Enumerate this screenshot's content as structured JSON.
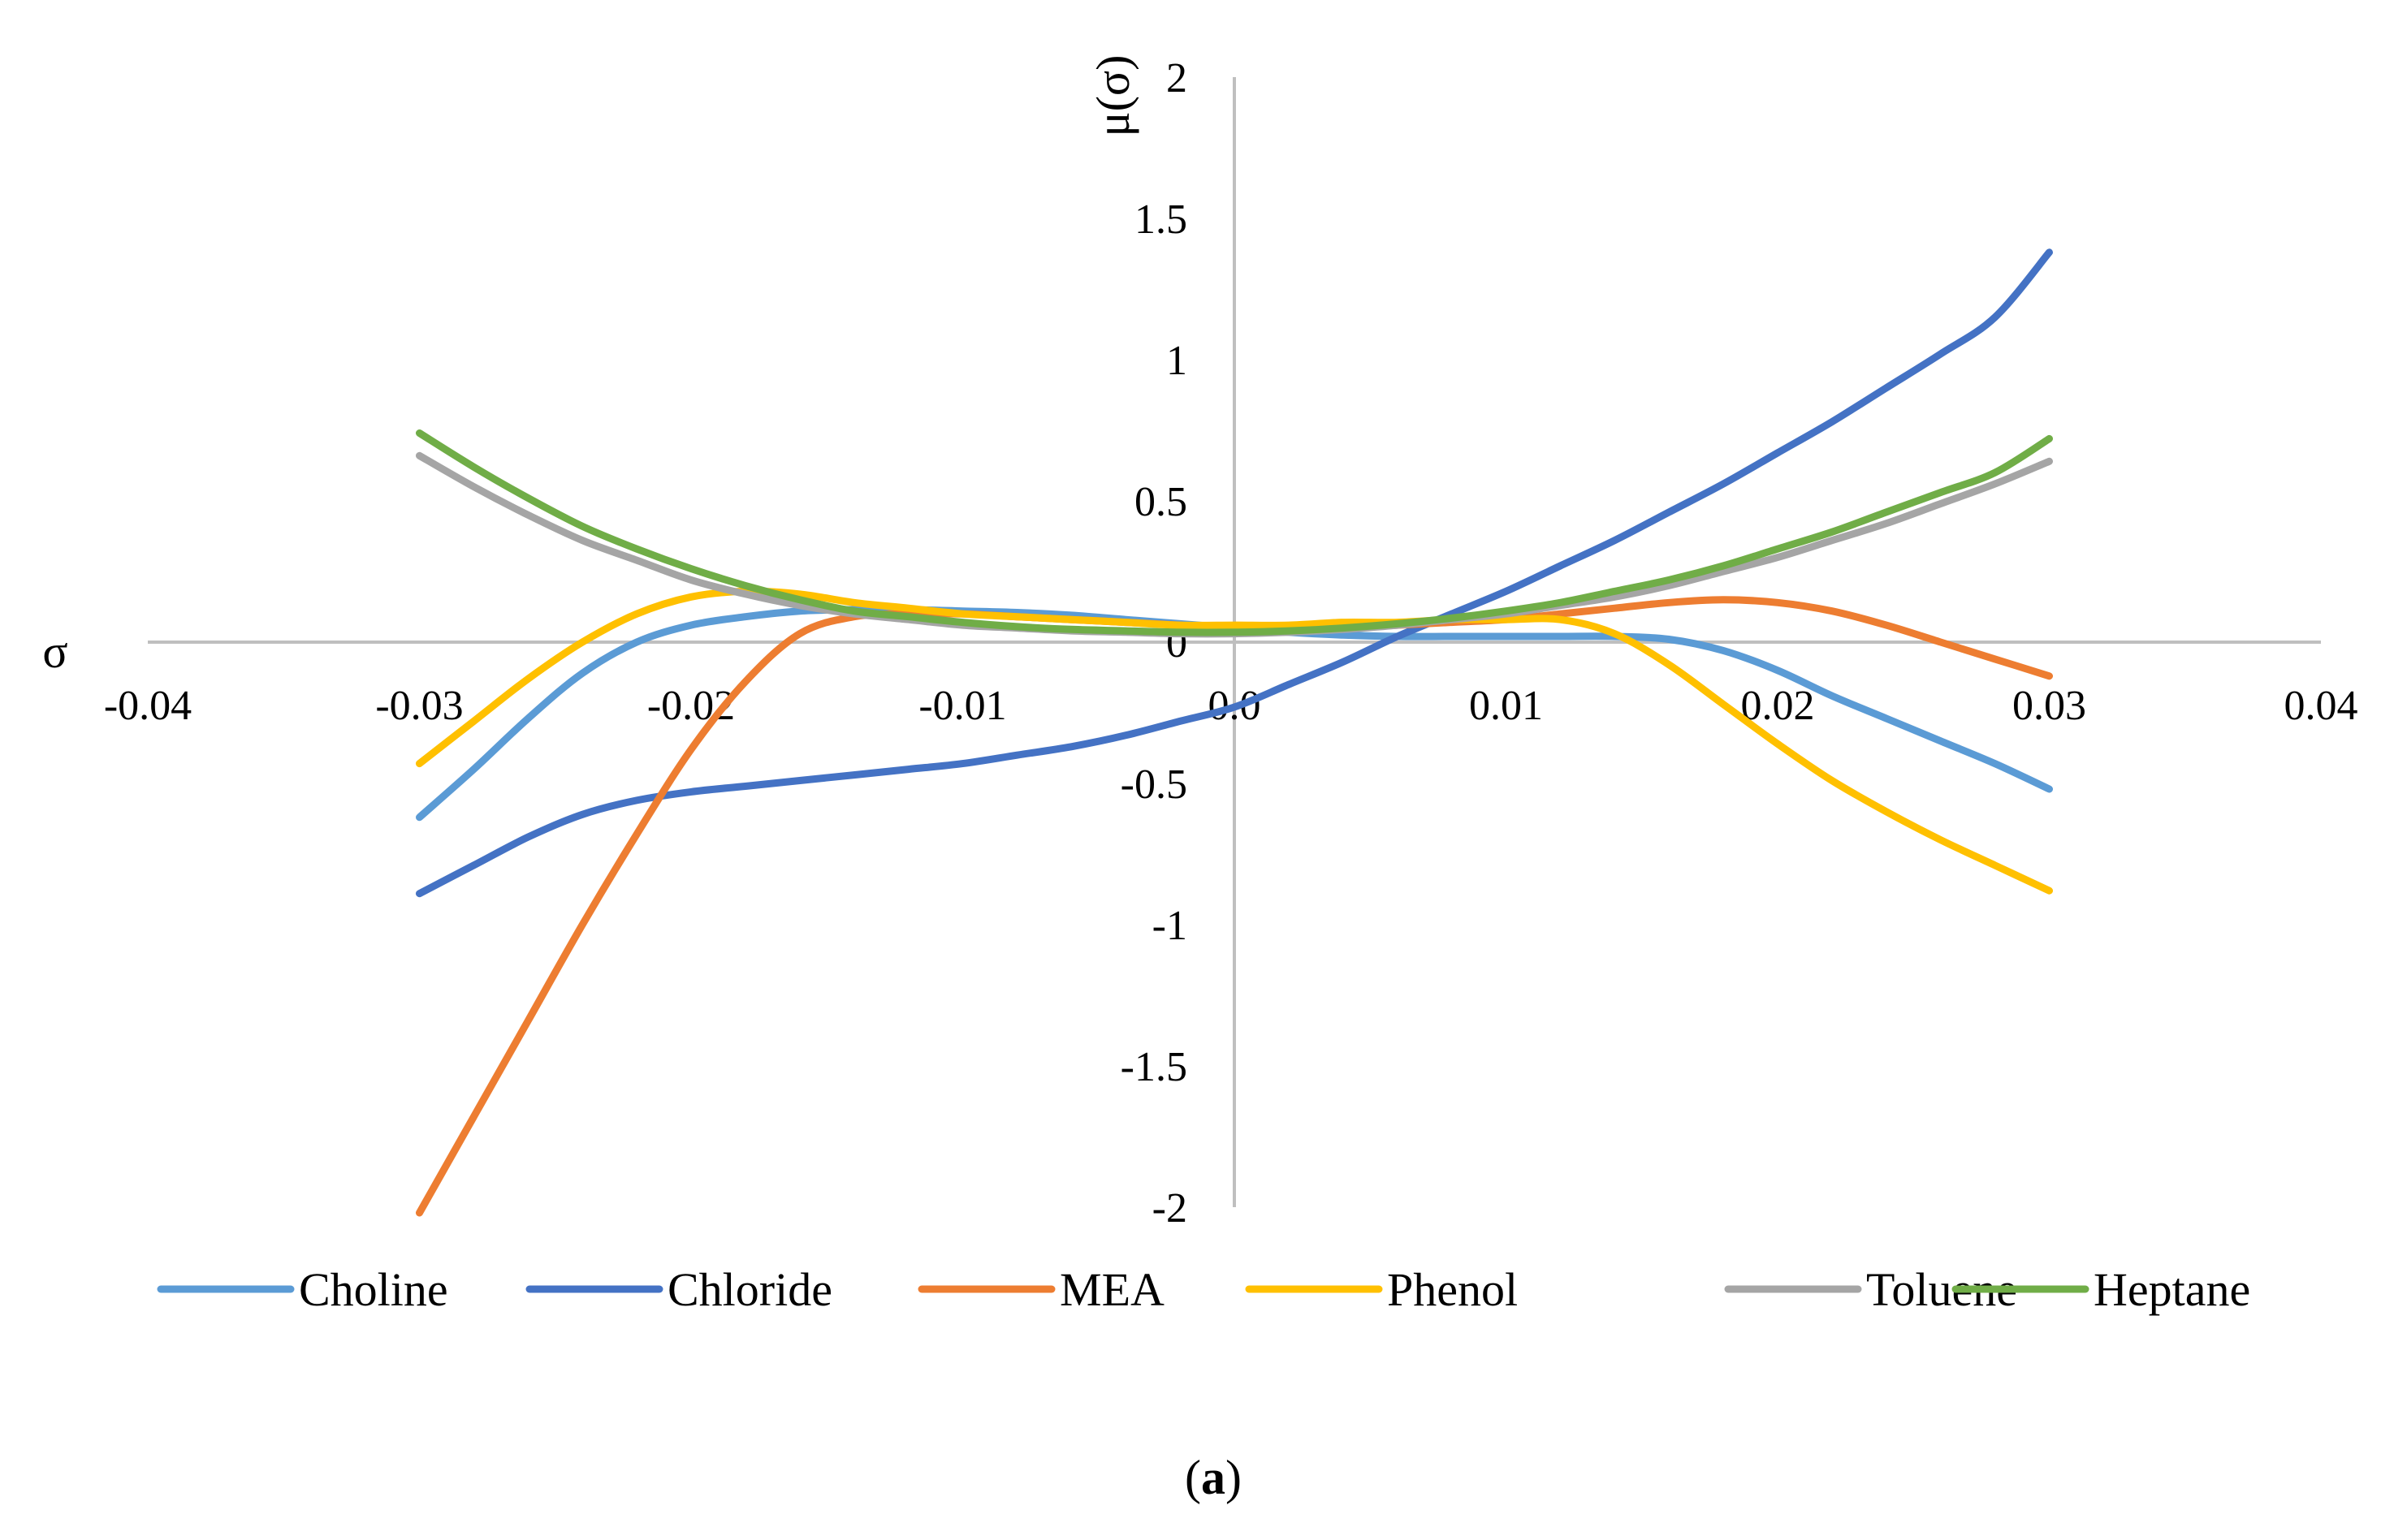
{
  "chart_data": {
    "type": "line",
    "title": "",
    "xlabel": "σ",
    "ylabel": "μ(σ)",
    "caption": {
      "open": "(",
      "bold": "a",
      "close": ")"
    },
    "xlim": [
      -0.04,
      0.04
    ],
    "ylim": [
      -2,
      2
    ],
    "grid": false,
    "legend_position": "bottom",
    "x_ticks": [
      {
        "value": -0.04,
        "label": "-0.04"
      },
      {
        "value": -0.03,
        "label": "-0.03"
      },
      {
        "value": -0.02,
        "label": "-0.02"
      },
      {
        "value": -0.01,
        "label": "-0.01"
      },
      {
        "value": 0.0,
        "label": "0.0"
      },
      {
        "value": 0.01,
        "label": "0.01"
      },
      {
        "value": 0.02,
        "label": "0.02"
      },
      {
        "value": 0.03,
        "label": "0.03"
      },
      {
        "value": 0.04,
        "label": "0.04"
      }
    ],
    "y_ticks": [
      {
        "value": 2,
        "label": "2"
      },
      {
        "value": 1.5,
        "label": "1.5"
      },
      {
        "value": 1,
        "label": "1"
      },
      {
        "value": 0.5,
        "label": "0.5"
      },
      {
        "value": 0,
        "label": "0"
      },
      {
        "value": -0.5,
        "label": "-0.5"
      },
      {
        "value": -1,
        "label": "-1"
      },
      {
        "value": -1.5,
        "label": "-1.5"
      },
      {
        "value": -2,
        "label": "-2"
      }
    ],
    "x": [
      -0.03,
      -0.028,
      -0.026,
      -0.024,
      -0.022,
      -0.02,
      -0.018,
      -0.016,
      -0.014,
      -0.012,
      -0.01,
      -0.008,
      -0.006,
      -0.004,
      -0.002,
      0.0,
      0.002,
      0.004,
      0.006,
      0.008,
      0.01,
      0.012,
      0.014,
      0.016,
      0.018,
      0.02,
      0.022,
      0.024,
      0.026,
      0.028,
      0.03
    ],
    "series": [
      {
        "name": "Choline",
        "color": "#5b9bd5",
        "values": [
          -0.62,
          -0.45,
          -0.27,
          -0.11,
          0.0,
          0.06,
          0.09,
          0.11,
          0.115,
          0.115,
          0.11,
          0.105,
          0.095,
          0.08,
          0.065,
          0.05,
          0.035,
          0.025,
          0.02,
          0.02,
          0.02,
          0.02,
          0.02,
          0.01,
          -0.03,
          -0.1,
          -0.19,
          -0.27,
          -0.35,
          -0.43,
          -0.52
        ]
      },
      {
        "name": "Chloride",
        "color": "#4472c4",
        "values": [
          -0.89,
          -0.79,
          -0.69,
          -0.61,
          -0.56,
          -0.53,
          -0.51,
          -0.49,
          -0.47,
          -0.45,
          -0.43,
          -0.4,
          -0.37,
          -0.33,
          -0.28,
          -0.23,
          -0.15,
          -0.07,
          0.02,
          0.1,
          0.18,
          0.27,
          0.36,
          0.46,
          0.56,
          0.67,
          0.78,
          0.9,
          1.02,
          1.15,
          1.38
        ]
      },
      {
        "name": "MEA",
        "color": "#ed7d31",
        "values": [
          -2.02,
          -1.68,
          -1.34,
          -1.0,
          -0.68,
          -0.38,
          -0.14,
          0.03,
          0.09,
          0.1,
          0.1,
          0.09,
          0.08,
          0.07,
          0.06,
          0.05,
          0.05,
          0.05,
          0.06,
          0.07,
          0.08,
          0.1,
          0.12,
          0.14,
          0.15,
          0.14,
          0.11,
          0.06,
          0.0,
          -0.06,
          -0.12
        ]
      },
      {
        "name": "Phenol",
        "color": "#ffc000",
        "values": [
          -0.43,
          -0.28,
          -0.13,
          0.0,
          0.1,
          0.16,
          0.18,
          0.17,
          0.14,
          0.12,
          0.1,
          0.09,
          0.08,
          0.07,
          0.06,
          0.06,
          0.06,
          0.07,
          0.07,
          0.08,
          0.08,
          0.08,
          0.03,
          -0.08,
          -0.22,
          -0.36,
          -0.49,
          -0.6,
          -0.7,
          -0.79,
          -0.88
        ]
      },
      {
        "name": "Toluene",
        "color": "#a5a5a5",
        "values": [
          0.66,
          0.55,
          0.45,
          0.36,
          0.29,
          0.22,
          0.17,
          0.13,
          0.1,
          0.08,
          0.06,
          0.05,
          0.04,
          0.035,
          0.03,
          0.03,
          0.035,
          0.045,
          0.06,
          0.08,
          0.1,
          0.13,
          0.16,
          0.2,
          0.25,
          0.3,
          0.36,
          0.42,
          0.49,
          0.56,
          0.64
        ]
      },
      {
        "name": "Heptane",
        "color": "#70ad47",
        "values": [
          0.74,
          0.62,
          0.51,
          0.41,
          0.33,
          0.26,
          0.2,
          0.15,
          0.11,
          0.09,
          0.07,
          0.055,
          0.045,
          0.04,
          0.035,
          0.035,
          0.04,
          0.05,
          0.065,
          0.085,
          0.11,
          0.14,
          0.18,
          0.22,
          0.27,
          0.33,
          0.39,
          0.46,
          0.53,
          0.6,
          0.72
        ]
      }
    ]
  }
}
